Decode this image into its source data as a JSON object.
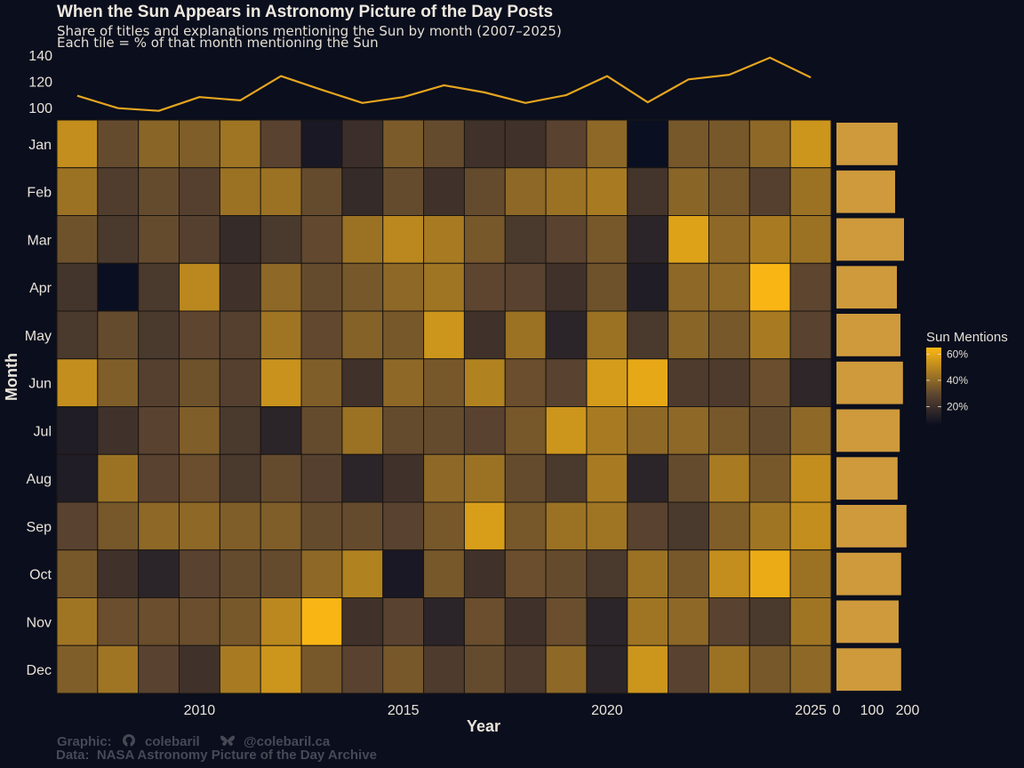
{
  "chart_data": {
    "type": "heatmap",
    "title": "When the Sun Appears in Astronomy Picture of the Day Posts",
    "subtitle": "Share of titles and explanations mentioning the Sun by month (2007–2025)",
    "subtitle2": "Each tile = % of that month mentioning the Sun",
    "xlabel": "Year",
    "ylabel": "Month",
    "x": [
      2007,
      2008,
      2009,
      2010,
      2011,
      2012,
      2013,
      2014,
      2015,
      2016,
      2017,
      2018,
      2019,
      2020,
      2021,
      2022,
      2023,
      2024,
      2025
    ],
    "x_ticks": [
      2010,
      2015,
      2020,
      2025
    ],
    "months": [
      "Jan",
      "Feb",
      "Mar",
      "Apr",
      "May",
      "Jun",
      "Jul",
      "Aug",
      "Sep",
      "Oct",
      "Nov",
      "Dec"
    ],
    "values_pct": [
      [
        52,
        31,
        39,
        37,
        44,
        28,
        10,
        20,
        36,
        31,
        21,
        21,
        28,
        40,
        6,
        35,
        35,
        40,
        54
      ],
      [
        43,
        26,
        31,
        27,
        43,
        43,
        31,
        18,
        31,
        21,
        31,
        40,
        43,
        46,
        22,
        39,
        35,
        27,
        43
      ],
      [
        33,
        24,
        31,
        27,
        18,
        24,
        30,
        43,
        50,
        46,
        35,
        24,
        28,
        35,
        15,
        58,
        40,
        46,
        43
      ],
      [
        22,
        6,
        24,
        50,
        21,
        40,
        31,
        35,
        40,
        44,
        29,
        28,
        21,
        33,
        12,
        40,
        40,
        64,
        29
      ],
      [
        24,
        31,
        24,
        29,
        27,
        44,
        30,
        38,
        35,
        54,
        21,
        43,
        15,
        43,
        24,
        39,
        35,
        46,
        28
      ],
      [
        52,
        37,
        27,
        33,
        27,
        53,
        37,
        21,
        40,
        35,
        48,
        32,
        28,
        56,
        60,
        25,
        25,
        32,
        16
      ],
      [
        12,
        21,
        28,
        37,
        24,
        15,
        31,
        43,
        31,
        31,
        28,
        35,
        54,
        46,
        40,
        40,
        35,
        31,
        40
      ],
      [
        12,
        43,
        28,
        32,
        24,
        31,
        27,
        15,
        21,
        40,
        43,
        31,
        24,
        46,
        15,
        31,
        46,
        35,
        52
      ],
      [
        28,
        35,
        40,
        40,
        37,
        37,
        31,
        31,
        28,
        35,
        57,
        35,
        43,
        44,
        28,
        24,
        37,
        44,
        52
      ],
      [
        35,
        21,
        15,
        28,
        31,
        31,
        40,
        48,
        10,
        35,
        21,
        32,
        31,
        24,
        43,
        35,
        52,
        61,
        43
      ],
      [
        44,
        32,
        32,
        32,
        35,
        50,
        64,
        21,
        28,
        15,
        32,
        21,
        32,
        15,
        44,
        40,
        28,
        24,
        44
      ],
      [
        37,
        44,
        28,
        21,
        46,
        54,
        35,
        28,
        35,
        25,
        31,
        25,
        40,
        15,
        54,
        28,
        43,
        35,
        40
      ]
    ],
    "color_scale": {
      "title": "Sun Mentions",
      "min_pct": 6,
      "max_pct": 65,
      "low_color": "#0b0f22",
      "mid_color": "#5a4330",
      "high_color": "#fdb813",
      "ticks": [
        20,
        40,
        60
      ],
      "tick_labels": [
        "20%",
        "40%",
        "60%"
      ],
      "placement": "right"
    },
    "top_line": {
      "type": "line",
      "description": "Yearly total Sun mentions",
      "color": "#e5a51f",
      "years": [
        2007,
        2008,
        2009,
        2010,
        2011,
        2012,
        2013,
        2014,
        2015,
        2016,
        2017,
        2018,
        2019,
        2020,
        2021,
        2022,
        2023,
        2024,
        2025
      ],
      "values": [
        109,
        99.5,
        97.5,
        108,
        105.5,
        124,
        113.5,
        103.5,
        108,
        117,
        111.5,
        103.5,
        109.5,
        124,
        104,
        121.5,
        125,
        138,
        123
      ],
      "ylim": [
        100,
        140
      ],
      "y_ticks": [
        100,
        120,
        140
      ]
    },
    "side_bars": {
      "type": "bar",
      "orientation": "horizontal",
      "description": "Monthly total Sun mentions",
      "color": "#cf9a3c",
      "months": [
        "Jan",
        "Feb",
        "Mar",
        "Apr",
        "May",
        "Jun",
        "Jul",
        "Aug",
        "Sep",
        "Oct",
        "Nov",
        "Dec"
      ],
      "values": [
        172,
        165,
        190,
        170,
        180,
        187,
        178,
        172,
        197,
        182,
        175,
        182
      ],
      "xlim": [
        0,
        200
      ],
      "x_ticks": [
        0,
        100,
        200
      ]
    }
  },
  "caption": {
    "graphic_label": "Graphic:",
    "github_icon": "github-icon",
    "github_handle": "colebaril",
    "bluesky_icon": "bluesky-butterfly-icon",
    "bluesky_handle": "@colebaril.ca",
    "data_line": "Data:  NASA Astronomy Picture of the Day Archive"
  },
  "colors": {
    "background": "#0a0e1d",
    "text": "#ece6dc",
    "caption": "#474a55"
  }
}
